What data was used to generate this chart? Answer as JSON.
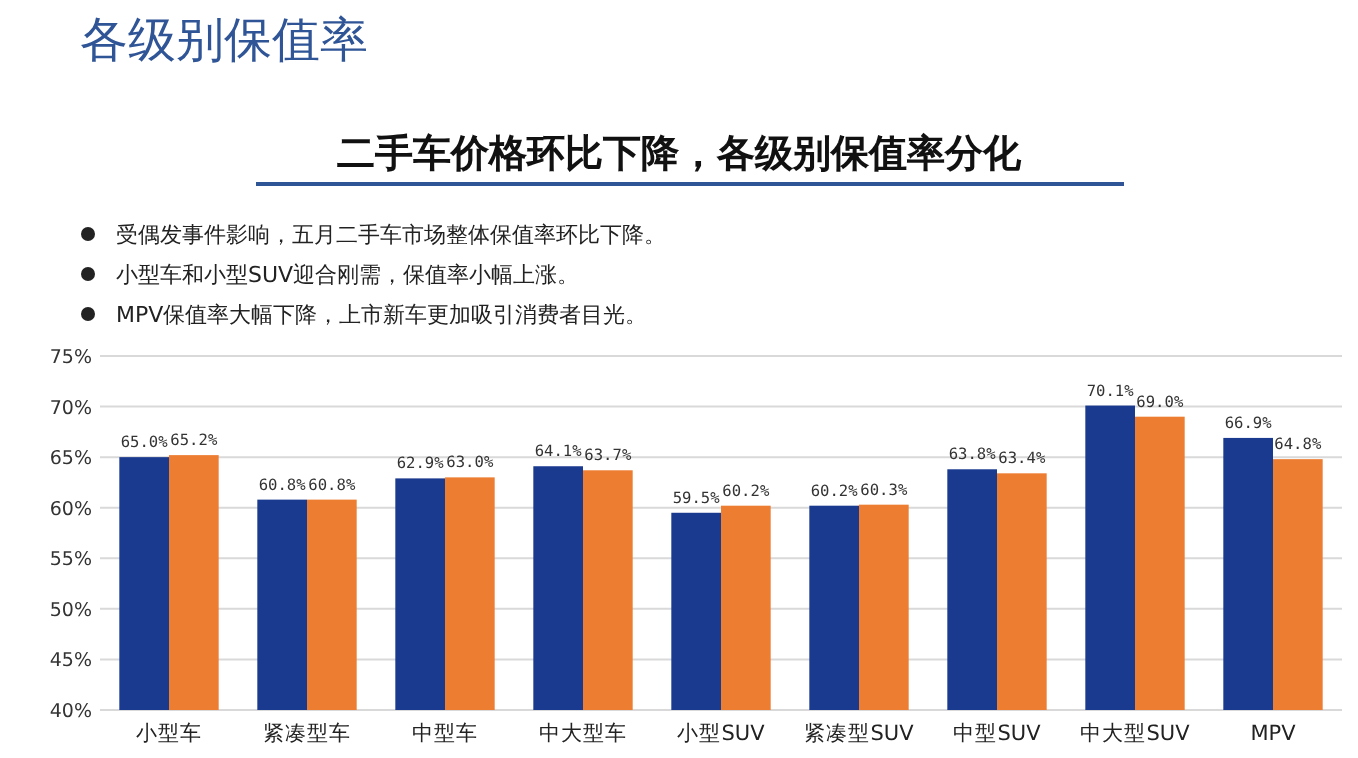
{
  "chart_data": {
    "type": "bar",
    "title": "各级别保值率",
    "subtitle": "二手车价格环比下降，各级别保值率分化",
    "annotations": [
      "受偶发事件影响，五月二手车市场整体保值率环比下降。",
      "小型车和小型SUV迎合刚需，保值率小幅上涨。",
      "MPV保值率大幅下降，上市新车更加吸引消费者目光。"
    ],
    "categories": [
      "小型车",
      "紧凑型车",
      "中型车",
      "中大型车",
      "小型SUV",
      "紧凑型SUV",
      "中型SUV",
      "中大型SUV",
      "MPV"
    ],
    "series": [
      {
        "color": "#1a3a8f",
        "values": [
          65.0,
          60.8,
          62.9,
          64.1,
          59.5,
          60.2,
          63.8,
          70.1,
          66.9
        ],
        "value_labels": [
          "65.0%",
          "60.8%",
          "62.9%",
          "64.1%",
          "59.5%",
          "60.2%",
          "63.8%",
          "70.1%",
          "66.9%"
        ]
      },
      {
        "color": "#ed7d31",
        "values": [
          65.2,
          60.8,
          63.0,
          63.7,
          60.2,
          60.3,
          63.4,
          69.0,
          64.8
        ],
        "value_labels": [
          "65.2%",
          "60.8%",
          "63.0%",
          "63.7%",
          "60.2%",
          "60.3%",
          "63.4%",
          "69.0%",
          "64.8%"
        ]
      }
    ],
    "ylim": [
      40,
      75
    ],
    "yticks": [
      {
        "value": 40,
        "label": "40%"
      },
      {
        "value": 45,
        "label": "45%"
      },
      {
        "value": 50,
        "label": "50%"
      },
      {
        "value": 55,
        "label": "55%"
      },
      {
        "value": 60,
        "label": "60%"
      },
      {
        "value": 65,
        "label": "65%"
      },
      {
        "value": 70,
        "label": "70%"
      },
      {
        "value": 75,
        "label": "75%"
      }
    ],
    "grid": "y"
  }
}
